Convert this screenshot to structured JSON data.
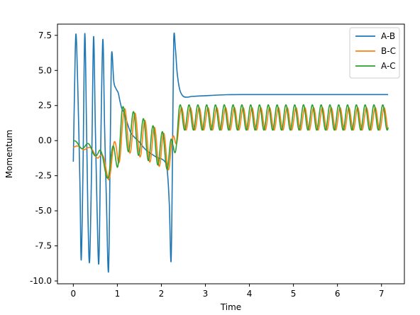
{
  "chart_data": {
    "type": "line",
    "title": "",
    "xlabel": "Time",
    "ylabel": "Momentum",
    "xlim": [
      -0.36,
      7.52
    ],
    "ylim": [
      -10.2,
      8.3
    ],
    "x_ticks": [
      0,
      1,
      2,
      3,
      4,
      5,
      6,
      7
    ],
    "y_ticks": [
      -10.0,
      -7.5,
      -5.0,
      -2.5,
      0.0,
      2.5,
      5.0,
      7.5
    ],
    "grid": false,
    "legend_position": "top-right",
    "series": [
      {
        "name": "A-B",
        "color": "#1f77b4",
        "points": [
          [
            0,
            -1.5
          ],
          [
            0.03,
            4
          ],
          [
            0.06,
            7.6
          ],
          [
            0.1,
            4
          ],
          [
            0.15,
            -3
          ],
          [
            0.18,
            -8.5
          ],
          [
            0.22,
            -2
          ],
          [
            0.26,
            7.6
          ],
          [
            0.3,
            1
          ],
          [
            0.33,
            -5
          ],
          [
            0.37,
            -8.6
          ],
          [
            0.42,
            -1
          ],
          [
            0.46,
            7.4
          ],
          [
            0.5,
            1
          ],
          [
            0.54,
            -5
          ],
          [
            0.58,
            -8.7
          ],
          [
            0.62,
            -1
          ],
          [
            0.67,
            7.2
          ],
          [
            0.71,
            1
          ],
          [
            0.75,
            -4
          ],
          [
            0.8,
            -9.3
          ],
          [
            0.84,
            0
          ],
          [
            0.87,
            6.2
          ],
          [
            0.92,
            4.2
          ],
          [
            0.97,
            3.7
          ],
          [
            1.02,
            3.4
          ],
          [
            1.06,
            2.8
          ],
          [
            1.1,
            2.3
          ],
          [
            1.15,
            2.0
          ],
          [
            1.2,
            1.5
          ],
          [
            1.3,
            0.6
          ],
          [
            1.4,
            0.2
          ],
          [
            1.5,
            -0.1
          ],
          [
            1.6,
            -0.5
          ],
          [
            1.7,
            -0.8
          ],
          [
            1.8,
            -1.0
          ],
          [
            1.9,
            -1.2
          ],
          [
            2.0,
            -1.3
          ],
          [
            2.08,
            -1.5
          ],
          [
            2.13,
            -2.0
          ],
          [
            2.18,
            -4.5
          ],
          [
            2.22,
            -8.6
          ],
          [
            2.25,
            -2
          ],
          [
            2.28,
            7.1
          ],
          [
            2.32,
            6.5
          ],
          [
            2.36,
            4.8
          ],
          [
            2.42,
            3.6
          ],
          [
            2.5,
            3.15
          ],
          [
            2.6,
            3.1
          ],
          [
            2.7,
            3.15
          ],
          [
            3.0,
            3.2
          ],
          [
            3.5,
            3.27
          ],
          [
            4,
            3.28
          ],
          [
            5,
            3.28
          ],
          [
            6,
            3.28
          ],
          [
            7.15,
            3.28
          ]
        ]
      },
      {
        "name": "B-C",
        "color": "#ff7f0e",
        "trend": [
          [
            0,
            -0.5
          ],
          [
            0.3,
            -0.5
          ],
          [
            0.4,
            -0.7
          ],
          [
            0.6,
            -1.1
          ],
          [
            0.8,
            -2.2
          ],
          [
            0.95,
            -1.2
          ],
          [
            1.1,
            0.8
          ],
          [
            1.4,
            0.5
          ],
          [
            1.8,
            -0.3
          ],
          [
            2.1,
            -0.8
          ],
          [
            2.25,
            -1.0
          ],
          [
            2.4,
            1.55
          ],
          [
            7.15,
            1.55
          ]
        ],
        "amplitude": [
          [
            0,
            0.1
          ],
          [
            0.5,
            0.2
          ],
          [
            0.8,
            0.6
          ],
          [
            1.0,
            1.6
          ],
          [
            2.2,
            1.2
          ],
          [
            2.4,
            0.8
          ],
          [
            7.15,
            0.8
          ]
        ],
        "freq": [
          [
            0,
            3
          ],
          [
            0.9,
            4
          ],
          [
            2.3,
            5.0
          ],
          [
            7.15,
            5.0
          ]
        ],
        "phase": 0.0
      },
      {
        "name": "A-C",
        "color": "#2ca02c",
        "trend": [
          [
            0,
            -0.2
          ],
          [
            0.3,
            -0.4
          ],
          [
            0.4,
            -0.6
          ],
          [
            0.6,
            -1.0
          ],
          [
            0.8,
            -2.3
          ],
          [
            0.95,
            -1.0
          ],
          [
            1.1,
            0.9
          ],
          [
            1.4,
            0.55
          ],
          [
            1.8,
            -0.25
          ],
          [
            2.1,
            -0.75
          ],
          [
            2.25,
            -1.1
          ],
          [
            2.4,
            1.65
          ],
          [
            7.15,
            1.65
          ]
        ],
        "amplitude": [
          [
            0,
            0.2
          ],
          [
            0.5,
            0.3
          ],
          [
            0.8,
            0.6
          ],
          [
            1.0,
            1.6
          ],
          [
            2.2,
            1.2
          ],
          [
            2.4,
            0.9
          ],
          [
            7.15,
            0.9
          ]
        ],
        "freq": [
          [
            0,
            3
          ],
          [
            0.9,
            4
          ],
          [
            2.3,
            5.0
          ],
          [
            7.15,
            5.0
          ]
        ],
        "phase": 0.15
      }
    ]
  }
}
